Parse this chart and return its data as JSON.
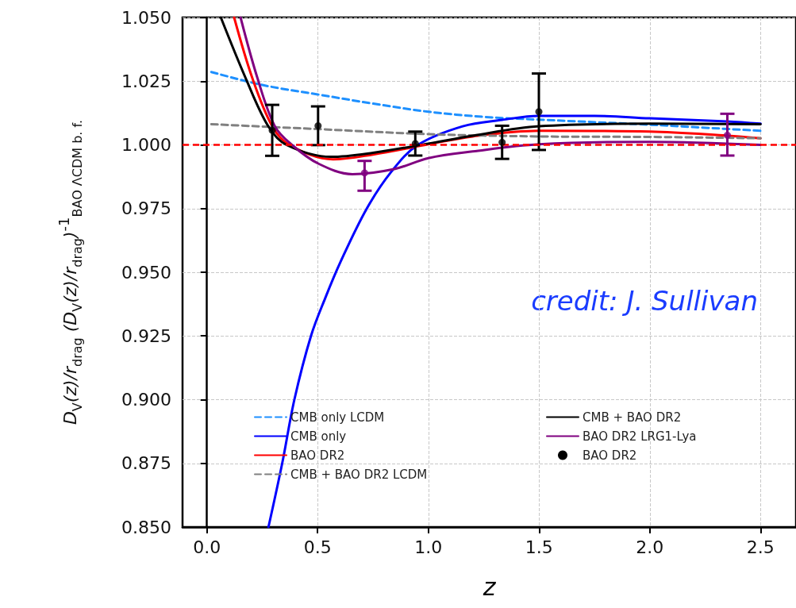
{
  "chart_data": {
    "type": "line",
    "xlabel": "z",
    "ylabel": "D$_{V}$(z)/r$_{drag}$ (D$_{V}$(z)/r$_{drag}$)$^{-1}$$_{BAO ΛCDM b. f.}$",
    "annotations": [
      "credit: J. Sullivan"
    ],
    "xlim": [
      -0.11,
      2.66
    ],
    "xticks": [
      {
        "value": 0,
        "label": "0.0"
      },
      {
        "value": 0.5,
        "label": "0.5"
      },
      {
        "value": 1,
        "label": "1.0"
      },
      {
        "value": 1.5,
        "label": "1.5"
      },
      {
        "value": 2,
        "label": "2.0"
      },
      {
        "value": 2.5,
        "label": "2.5"
      }
    ],
    "ylim": [
      0.85,
      1.05
    ],
    "yticks": [
      {
        "value": 0.85,
        "label": "0.850"
      },
      {
        "value": 0.875,
        "label": "0.875"
      },
      {
        "value": 0.9,
        "label": "0.900"
      },
      {
        "value": 0.925,
        "label": "0.925"
      },
      {
        "value": 0.95,
        "label": "0.950"
      },
      {
        "value": 0.975,
        "label": "0.975"
      },
      {
        "value": 1.0,
        "label": "1.000"
      },
      {
        "value": 1.025,
        "label": "1.025"
      },
      {
        "value": 1.05,
        "label": "1.050"
      }
    ],
    "grid": true,
    "legend": "bottom",
    "marker": "none",
    "ref_lines": [
      {
        "axis": "y",
        "value": 1.0,
        "color": "#ff0000",
        "line_style": "dashed"
      }
    ],
    "series": [
      {
        "name": "CMB only LCDM",
        "color": "#1e90ff",
        "line_style": "dashed",
        "x": [
          0.02,
          0.25,
          0.5,
          0.75,
          1.0,
          1.25,
          1.5,
          2.0,
          2.5
        ],
        "values": [
          1.0286,
          1.0235,
          1.0198,
          1.0162,
          1.013,
          1.011,
          1.0099,
          1.0079,
          1.0055
        ]
      },
      {
        "name": "CMB only",
        "color": "#0000ff",
        "line_style": "solid",
        "x": [
          0.278,
          0.34,
          0.395,
          0.47,
          0.535,
          0.603,
          0.722,
          0.834,
          0.953,
          1.155,
          1.333,
          1.5,
          1.75,
          2.0,
          2.35,
          2.5
        ],
        "values": [
          0.85,
          0.875,
          0.9,
          0.925,
          0.94,
          0.954,
          0.975,
          0.9896,
          1.0,
          1.0073,
          1.0098,
          1.0114,
          1.0114,
          1.0104,
          1.0092,
          1.0083
        ]
      },
      {
        "name": "BAO DR2",
        "color": "#ff0000",
        "line_style": "solid",
        "x": [
          0.123,
          0.206,
          0.295,
          0.372,
          0.57,
          0.75,
          1.0,
          1.2,
          1.5,
          2.0,
          2.35,
          2.5
        ],
        "values": [
          1.05,
          1.026,
          1.0073,
          1.0,
          0.9943,
          0.9962,
          1.0002,
          1.0033,
          1.0055,
          1.0052,
          1.0036,
          1.0026
        ]
      },
      {
        "name": "CMB + BAO DR2 LCDM",
        "color": "#808080",
        "line_style": "dashed",
        "x": [
          0.02,
          0.5,
          1.0,
          1.5,
          2.0,
          2.5
        ],
        "values": [
          1.0081,
          1.0062,
          1.0042,
          1.0033,
          1.0031,
          1.0026
        ]
      },
      {
        "name": "CMB + BAO DR2",
        "color": "#000000",
        "line_style": "solid",
        "x": [
          0.063,
          0.176,
          0.277,
          0.359,
          0.56,
          0.75,
          1.0,
          1.2,
          1.5,
          2.0,
          2.5
        ],
        "values": [
          1.05,
          1.026,
          1.0073,
          1.0,
          0.9953,
          0.9969,
          1.0005,
          1.0036,
          1.0073,
          1.0083,
          1.0081
        ]
      },
      {
        "name": "BAO DR2 LRG1-Lya",
        "color": "#800080",
        "line_style": "solid",
        "x": [
          0.152,
          0.229,
          0.307,
          0.384,
          0.502,
          0.657,
          0.85,
          1.0,
          1.2,
          1.5,
          2.0,
          2.5
        ],
        "values": [
          1.05,
          1.026,
          1.0073,
          1.0,
          0.9927,
          0.9885,
          0.9906,
          0.9948,
          0.9974,
          1.0002,
          1.0012,
          1.0
        ]
      },
      {
        "name": "BAO DR2",
        "type": "scatter",
        "marker": "circle",
        "color": "#000000",
        "x": [
          0.295,
          0.502,
          0.941,
          1.333,
          1.499
        ],
        "values": [
          1.0057,
          1.0075,
          1.0005,
          1.001,
          1.013
        ],
        "errors": [
          0.01,
          0.0076,
          0.0047,
          0.0065,
          0.015
        ]
      },
      {
        "type": "scatter",
        "marker": "circle",
        "color": "#800080",
        "x": [
          0.712,
          2.35
        ],
        "values": [
          0.989,
          1.0038
        ],
        "errors": [
          [
            0.982,
            0.9937
          ],
          [
            0.9958,
            1.0122
          ]
        ]
      }
    ]
  }
}
